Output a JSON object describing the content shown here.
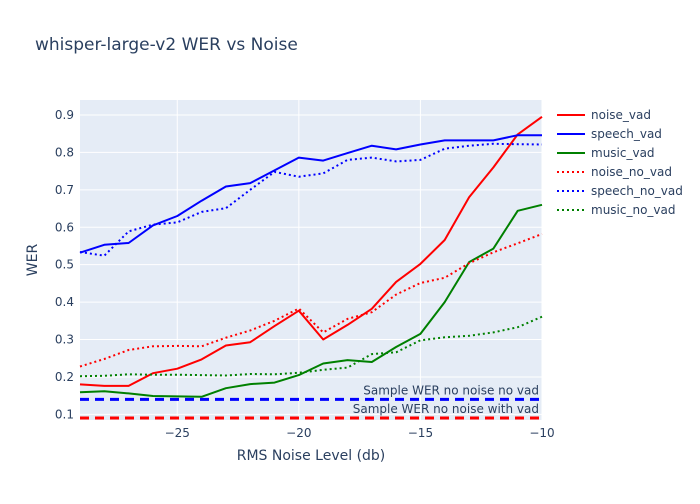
{
  "chart_data": {
    "type": "line",
    "title": "whisper-large-v2 WER vs Noise",
    "xlabel": "RMS Noise Level (db)",
    "ylabel": "WER",
    "xlim": [
      -29,
      -10
    ],
    "ylim": [
      0.085,
      0.94
    ],
    "xticks": [
      -25,
      -20,
      -15,
      -10
    ],
    "xtick_labels": [
      "−25",
      "−20",
      "−15",
      "−10"
    ],
    "yticks": [
      0.1,
      0.2,
      0.3,
      0.4,
      0.5,
      0.6,
      0.7,
      0.8,
      0.9
    ],
    "ytick_labels": [
      "0.1",
      "0.2",
      "0.3",
      "0.4",
      "0.5",
      "0.6",
      "0.7",
      "0.8",
      "0.9"
    ],
    "grid": true,
    "legend_position": "right",
    "x": [
      -29,
      -28,
      -27,
      -26,
      -25,
      -24,
      -23,
      -22,
      -21,
      -20,
      -19,
      -18,
      -17,
      -16,
      -15,
      -14,
      -13,
      -12,
      -11,
      -10
    ],
    "series": [
      {
        "name": "noise_vad",
        "color": "#ff0000",
        "dash": "solid",
        "values": [
          0.18,
          0.176,
          0.176,
          0.21,
          0.222,
          0.247,
          0.284,
          0.293,
          0.336,
          0.377,
          0.3,
          0.339,
          0.382,
          0.454,
          0.502,
          0.566,
          0.68,
          0.76,
          0.848,
          0.895
        ]
      },
      {
        "name": "speech_vad",
        "color": "#0000ff",
        "dash": "solid",
        "values": [
          0.532,
          0.553,
          0.558,
          0.605,
          0.63,
          0.671,
          0.709,
          0.718,
          0.752,
          0.786,
          0.778,
          0.798,
          0.818,
          0.808,
          0.821,
          0.832,
          0.832,
          0.832,
          0.846,
          0.846
        ]
      },
      {
        "name": "music_vad",
        "color": "#008000",
        "dash": "solid",
        "values": [
          0.159,
          0.162,
          0.156,
          0.149,
          0.148,
          0.147,
          0.17,
          0.181,
          0.185,
          0.205,
          0.236,
          0.245,
          0.24,
          0.28,
          0.315,
          0.4,
          0.507,
          0.543,
          0.644,
          0.66
        ]
      },
      {
        "name": "noise_no_vad",
        "color": "#ff0000",
        "dash": "dotted",
        "values": [
          0.228,
          0.248,
          0.272,
          0.282,
          0.283,
          0.282,
          0.305,
          0.324,
          0.35,
          0.383,
          0.319,
          0.355,
          0.373,
          0.42,
          0.451,
          0.465,
          0.504,
          0.533,
          0.557,
          0.582
        ]
      },
      {
        "name": "speech_no_vad",
        "color": "#0000ff",
        "dash": "dotted",
        "values": [
          0.534,
          0.524,
          0.589,
          0.607,
          0.613,
          0.641,
          0.651,
          0.7,
          0.748,
          0.735,
          0.744,
          0.78,
          0.786,
          0.776,
          0.78,
          0.81,
          0.818,
          0.823,
          0.822,
          0.821
        ]
      },
      {
        "name": "music_no_vad",
        "color": "#008000",
        "dash": "dotted",
        "values": [
          0.202,
          0.203,
          0.207,
          0.206,
          0.206,
          0.205,
          0.204,
          0.208,
          0.207,
          0.211,
          0.219,
          0.225,
          0.261,
          0.266,
          0.298,
          0.306,
          0.31,
          0.319,
          0.333,
          0.361
        ]
      }
    ],
    "reference_lines": [
      {
        "label": "Sample WER no noise no vad",
        "y": 0.14,
        "color": "#0000ff"
      },
      {
        "label": "Sample WER no noise with vad",
        "y": 0.085,
        "color": "#ff0000"
      }
    ]
  }
}
